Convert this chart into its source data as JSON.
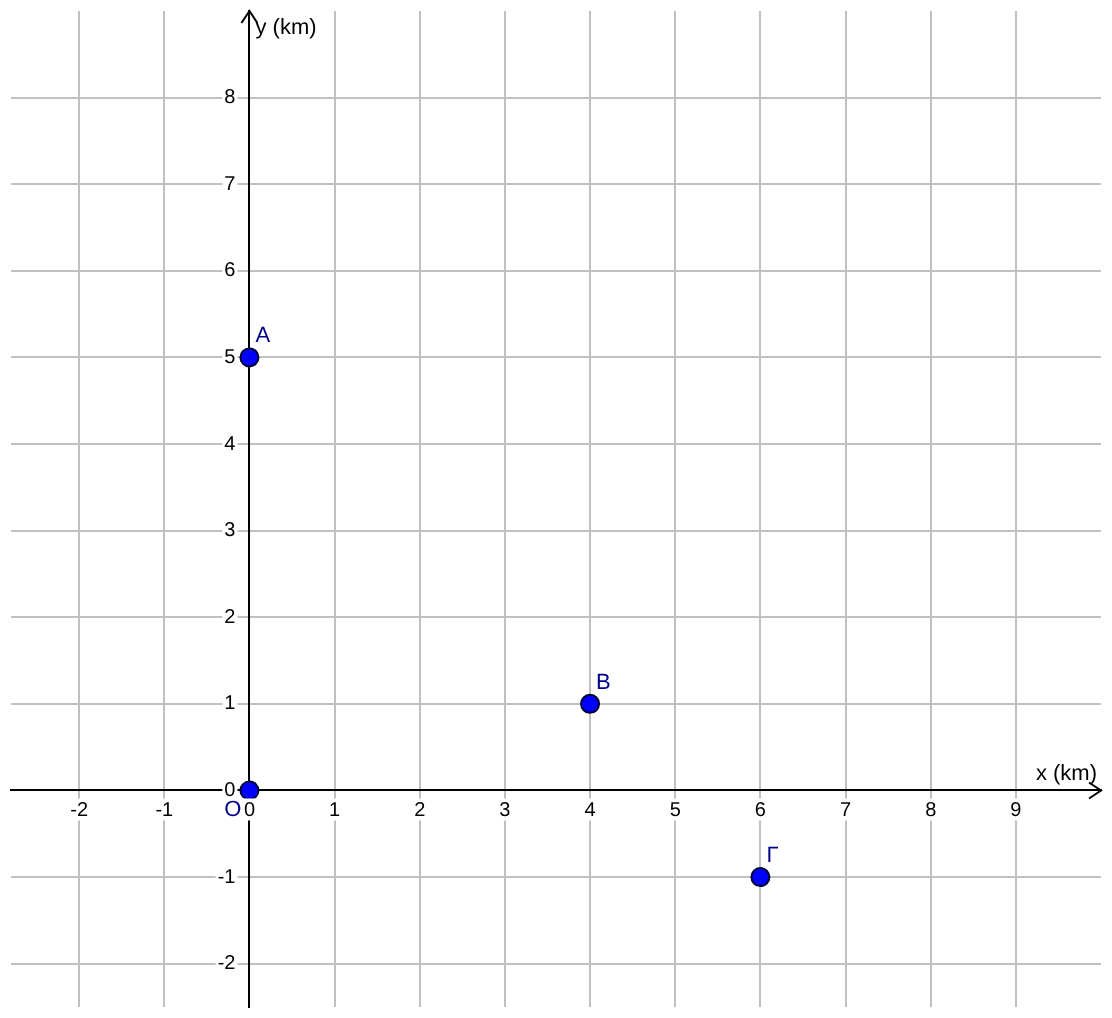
{
  "chart_data": {
    "type": "scatter",
    "xlabel": "x (km)",
    "ylabel": "y (km)",
    "x": [
      0,
      0,
      4,
      6
    ],
    "values": [
      0,
      5,
      1,
      -1
    ],
    "color": "#0000ff",
    "marker": "circle",
    "xlim": [
      -2.8,
      10
    ],
    "ylim": [
      -2.5,
      9
    ],
    "xticks": [
      -2,
      -1,
      0,
      1,
      2,
      3,
      4,
      5,
      6,
      7,
      8,
      9
    ],
    "yticks": [
      -2,
      -1,
      0,
      1,
      2,
      3,
      4,
      5,
      6,
      7,
      8
    ],
    "grid": true,
    "legend": false,
    "annotations": [
      {
        "text": "O",
        "x": 0,
        "y": 0
      },
      {
        "text": "A",
        "x": 0,
        "y": 5
      },
      {
        "text": "B",
        "x": 4,
        "y": 1
      },
      {
        "text": "Γ",
        "x": 6,
        "y": -1
      }
    ]
  }
}
